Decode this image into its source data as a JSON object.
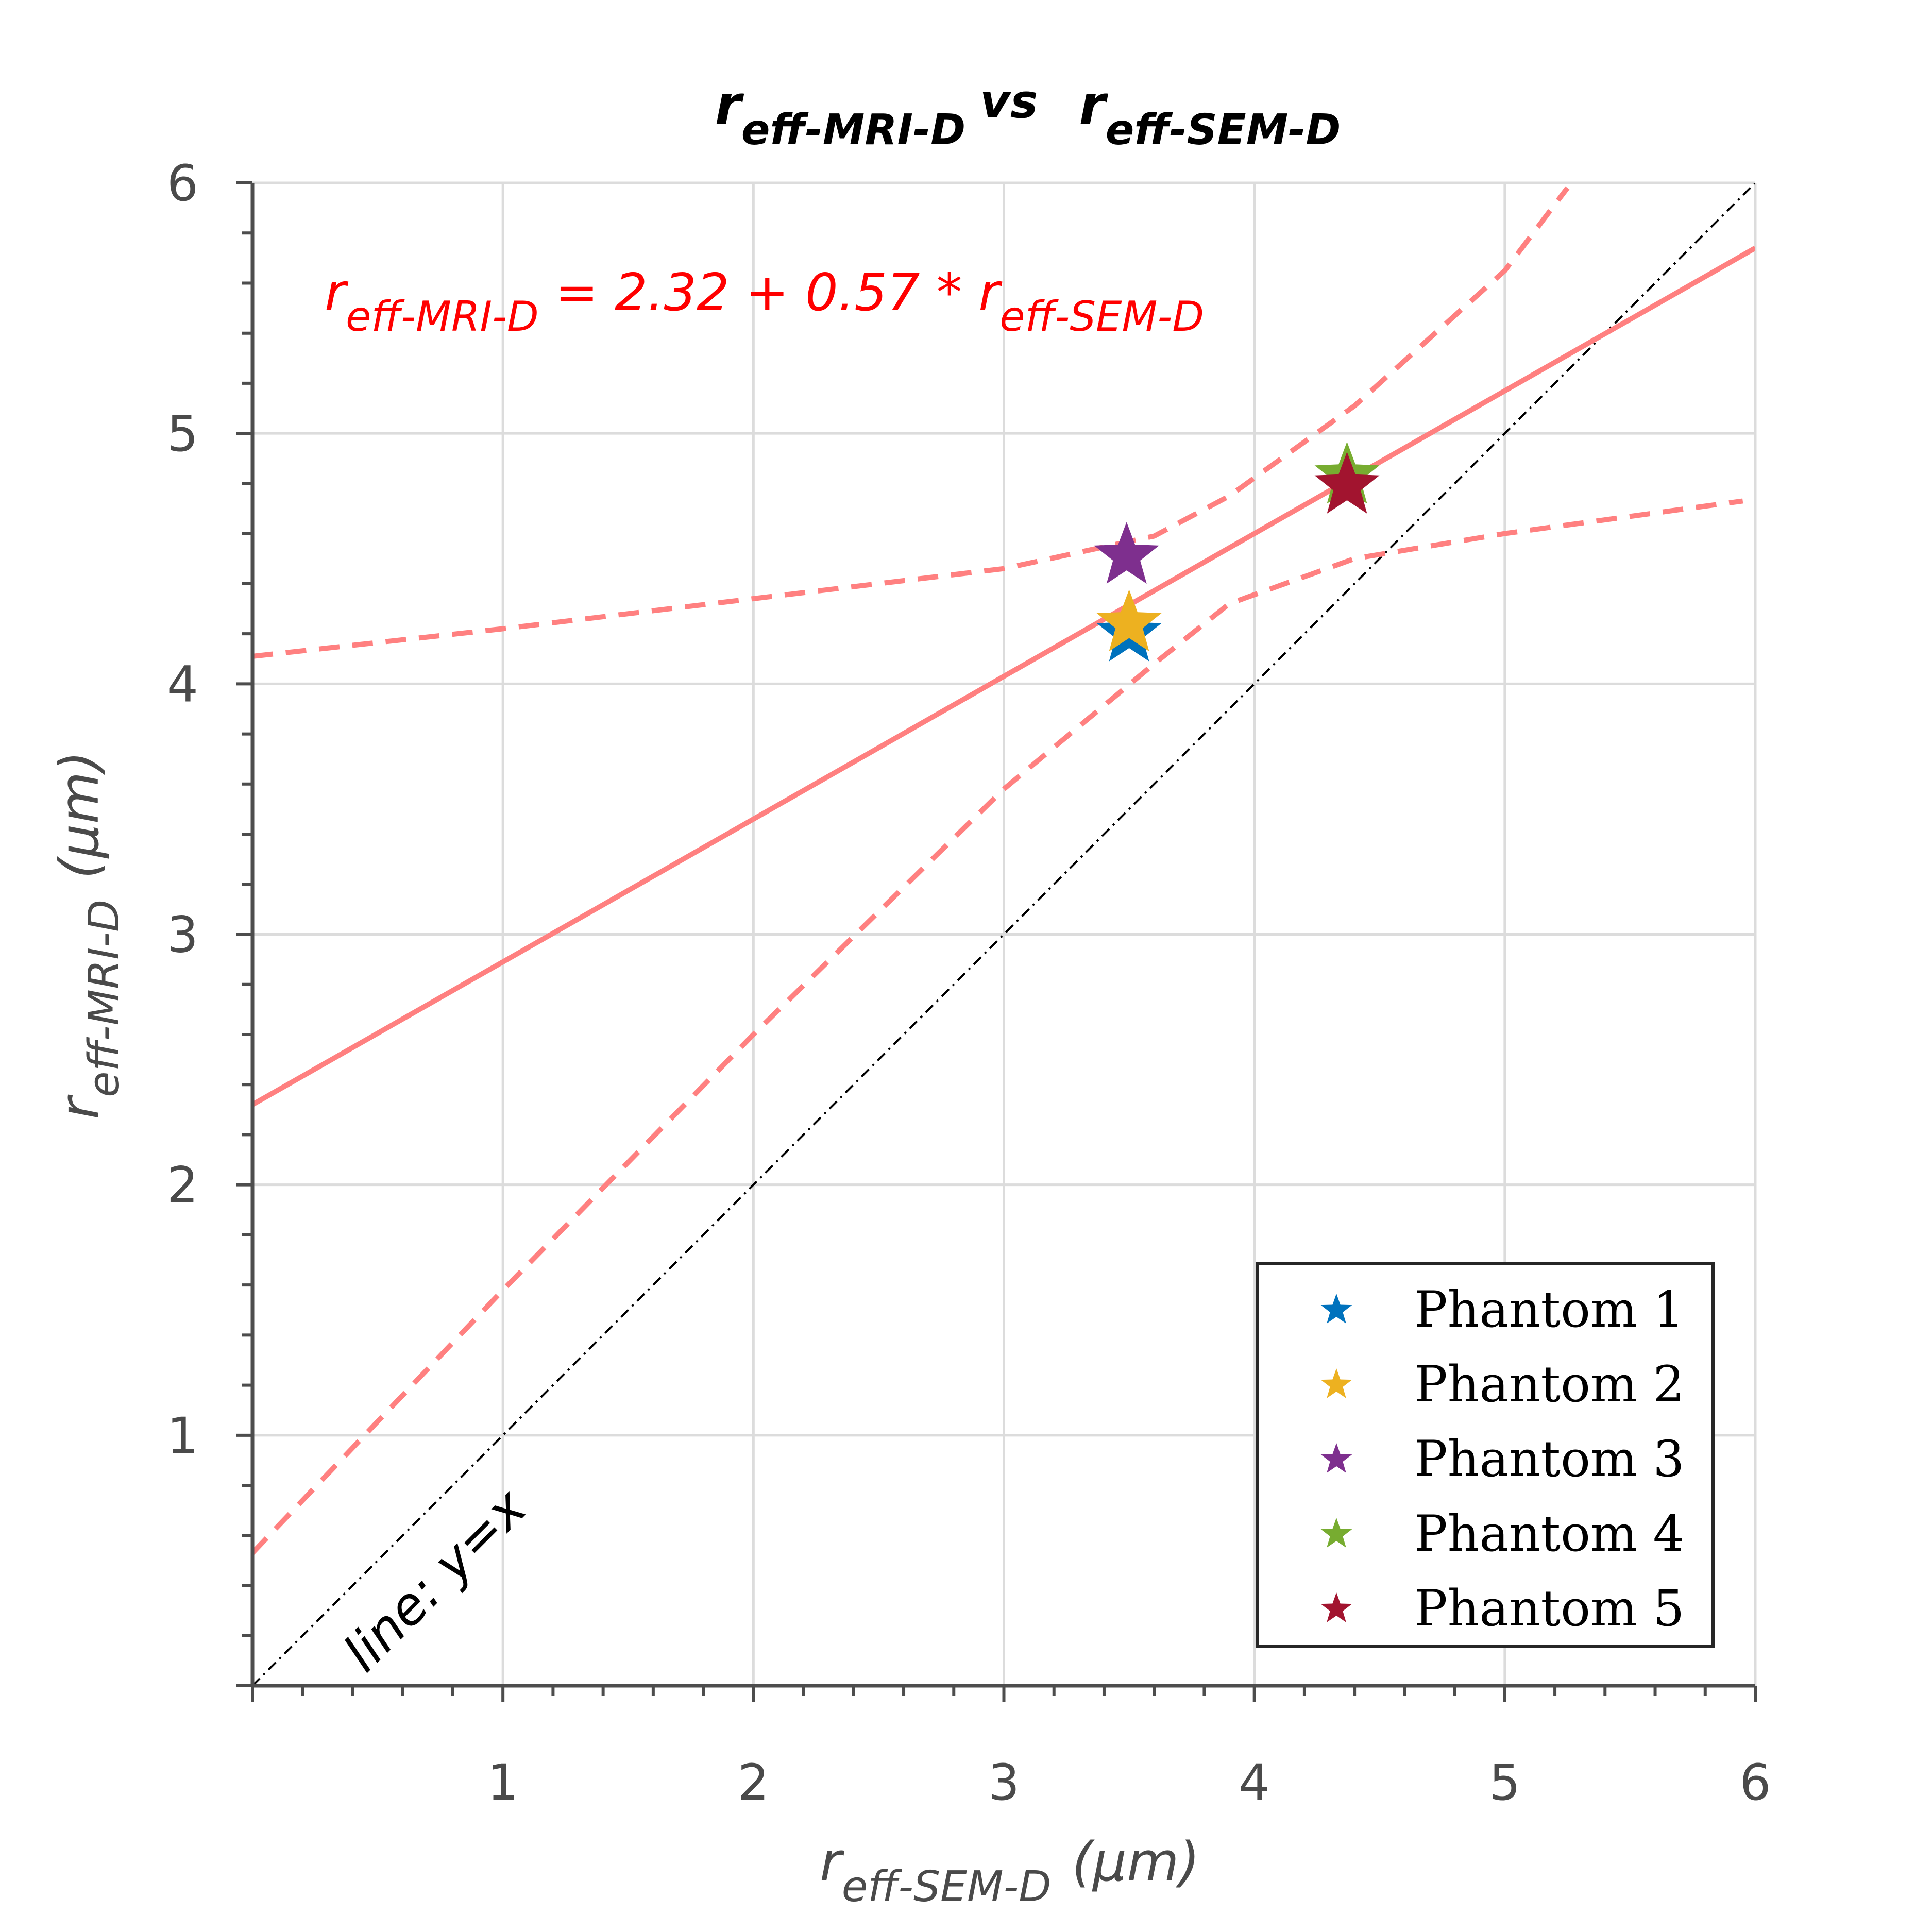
{
  "chart_data": {
    "type": "scatter",
    "title": {
      "a_base": "r",
      "a_sub": "eff-MRI-D",
      "vs": "vs",
      "b_base": "r",
      "b_sub": "eff-SEM-D"
    },
    "xlabel": {
      "base": "r",
      "sub": "eff-SEM-D",
      "unit": "(μm)"
    },
    "ylabel": {
      "base": "r",
      "sub": "eff-MRI-D",
      "unit": "(μm)"
    },
    "xlim": [
      0,
      6
    ],
    "ylim": [
      0,
      6
    ],
    "xticks": [
      1,
      2,
      3,
      4,
      5,
      6
    ],
    "yticks": [
      1,
      2,
      3,
      4,
      5,
      6
    ],
    "xtick_labels": [
      "1",
      "2",
      "3",
      "4",
      "5",
      "6"
    ],
    "ytick_labels": [
      "1",
      "2",
      "3",
      "4",
      "5",
      "6"
    ],
    "grid": true,
    "series": [
      {
        "name": "Phantom 1",
        "color": "#0072BD",
        "marker": "star",
        "points": [
          {
            "x": 3.5,
            "y": 4.2
          }
        ]
      },
      {
        "name": "Phantom 2",
        "color": "#EDB120",
        "marker": "star",
        "points": [
          {
            "x": 3.5,
            "y": 4.24
          }
        ]
      },
      {
        "name": "Phantom 3",
        "color": "#7E2F8E",
        "marker": "star",
        "points": [
          {
            "x": 3.49,
            "y": 4.51
          }
        ]
      },
      {
        "name": "Phantom 4",
        "color": "#77AC30",
        "marker": "star",
        "points": [
          {
            "x": 4.37,
            "y": 4.83
          }
        ]
      },
      {
        "name": "Phantom 5",
        "color": "#A2142F",
        "marker": "star",
        "points": [
          {
            "x": 4.37,
            "y": 4.79
          }
        ]
      }
    ],
    "fit": {
      "color": "#ff8080",
      "intercept": 2.32,
      "slope": 0.57,
      "equation": {
        "lhs_base": "r",
        "lhs_sub": "eff-MRI-D",
        "middle": " = 2.32 + 0.57 * ",
        "rhs_base": "r",
        "rhs_sub": "eff-SEM-D"
      },
      "confidence_upper": [
        {
          "x": 0,
          "y": 4.11
        },
        {
          "x": 1,
          "y": 4.22
        },
        {
          "x": 2,
          "y": 4.34
        },
        {
          "x": 3,
          "y": 4.46
        },
        {
          "x": 3.6,
          "y": 4.59
        },
        {
          "x": 3.9,
          "y": 4.75
        },
        {
          "x": 4.4,
          "y": 5.11
        },
        {
          "x": 5,
          "y": 5.65
        },
        {
          "x": 5.25,
          "y": 5.98
        }
      ],
      "confidence_lower": [
        {
          "x": 0,
          "y": 0.53
        },
        {
          "x": 1,
          "y": 1.58
        },
        {
          "x": 2,
          "y": 2.6
        },
        {
          "x": 3,
          "y": 3.58
        },
        {
          "x": 3.6,
          "y": 4.08
        },
        {
          "x": 3.9,
          "y": 4.32
        },
        {
          "x": 4.4,
          "y": 4.5
        },
        {
          "x": 5,
          "y": 4.6
        },
        {
          "x": 5.95,
          "y": 4.73
        }
      ]
    },
    "reference_line": {
      "label": "line: y=x",
      "slope": 1,
      "intercept": 0,
      "color": "#000000"
    },
    "legend": {
      "placement": "lower-right",
      "entries": [
        "Phantom 1",
        "Phantom 2",
        "Phantom 3",
        "Phantom 4",
        "Phantom 5"
      ]
    }
  }
}
